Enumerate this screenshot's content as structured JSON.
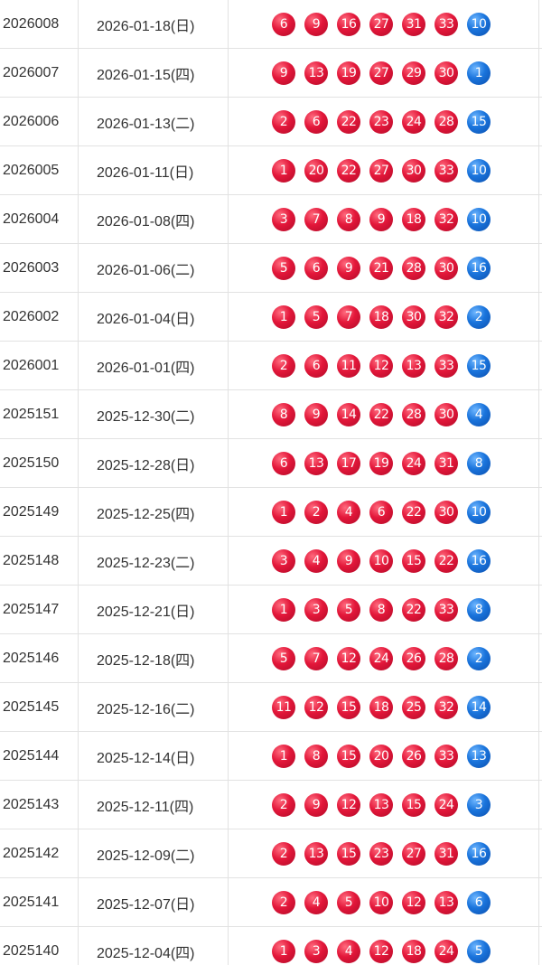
{
  "draws": [
    {
      "issue": "2026008",
      "date": "2026-01-18(日)",
      "red": [
        "6",
        "9",
        "16",
        "27",
        "31",
        "33"
      ],
      "blue": "10"
    },
    {
      "issue": "2026007",
      "date": "2026-01-15(四)",
      "red": [
        "9",
        "13",
        "19",
        "27",
        "29",
        "30"
      ],
      "blue": "1"
    },
    {
      "issue": "2026006",
      "date": "2026-01-13(二)",
      "red": [
        "2",
        "6",
        "22",
        "23",
        "24",
        "28"
      ],
      "blue": "15"
    },
    {
      "issue": "2026005",
      "date": "2026-01-11(日)",
      "red": [
        "1",
        "20",
        "22",
        "27",
        "30",
        "33"
      ],
      "blue": "10"
    },
    {
      "issue": "2026004",
      "date": "2026-01-08(四)",
      "red": [
        "3",
        "7",
        "8",
        "9",
        "18",
        "32"
      ],
      "blue": "10"
    },
    {
      "issue": "2026003",
      "date": "2026-01-06(二)",
      "red": [
        "5",
        "6",
        "9",
        "21",
        "28",
        "30"
      ],
      "blue": "16"
    },
    {
      "issue": "2026002",
      "date": "2026-01-04(日)",
      "red": [
        "1",
        "5",
        "7",
        "18",
        "30",
        "32"
      ],
      "blue": "2"
    },
    {
      "issue": "2026001",
      "date": "2026-01-01(四)",
      "red": [
        "2",
        "6",
        "11",
        "12",
        "13",
        "33"
      ],
      "blue": "15"
    },
    {
      "issue": "2025151",
      "date": "2025-12-30(二)",
      "red": [
        "8",
        "9",
        "14",
        "22",
        "28",
        "30"
      ],
      "blue": "4"
    },
    {
      "issue": "2025150",
      "date": "2025-12-28(日)",
      "red": [
        "6",
        "13",
        "17",
        "19",
        "24",
        "31"
      ],
      "blue": "8"
    },
    {
      "issue": "2025149",
      "date": "2025-12-25(四)",
      "red": [
        "1",
        "2",
        "4",
        "6",
        "22",
        "30"
      ],
      "blue": "10"
    },
    {
      "issue": "2025148",
      "date": "2025-12-23(二)",
      "red": [
        "3",
        "4",
        "9",
        "10",
        "15",
        "22"
      ],
      "blue": "16"
    },
    {
      "issue": "2025147",
      "date": "2025-12-21(日)",
      "red": [
        "1",
        "3",
        "5",
        "8",
        "22",
        "33"
      ],
      "blue": "8"
    },
    {
      "issue": "2025146",
      "date": "2025-12-18(四)",
      "red": [
        "5",
        "7",
        "12",
        "24",
        "26",
        "28"
      ],
      "blue": "2"
    },
    {
      "issue": "2025145",
      "date": "2025-12-16(二)",
      "red": [
        "11",
        "12",
        "15",
        "18",
        "25",
        "32"
      ],
      "blue": "14"
    },
    {
      "issue": "2025144",
      "date": "2025-12-14(日)",
      "red": [
        "1",
        "8",
        "15",
        "20",
        "26",
        "33"
      ],
      "blue": "13"
    },
    {
      "issue": "2025143",
      "date": "2025-12-11(四)",
      "red": [
        "2",
        "9",
        "12",
        "13",
        "15",
        "24"
      ],
      "blue": "3"
    },
    {
      "issue": "2025142",
      "date": "2025-12-09(二)",
      "red": [
        "2",
        "13",
        "15",
        "23",
        "27",
        "31"
      ],
      "blue": "16"
    },
    {
      "issue": "2025141",
      "date": "2025-12-07(日)",
      "red": [
        "2",
        "4",
        "5",
        "10",
        "12",
        "13"
      ],
      "blue": "6"
    },
    {
      "issue": "2025140",
      "date": "2025-12-04(四)",
      "red": [
        "1",
        "3",
        "4",
        "12",
        "18",
        "24"
      ],
      "blue": "5"
    }
  ],
  "colors": {
    "red_ball": "#e3173a",
    "blue_ball": "#1a74dc",
    "grid_line": "#e2e2e2",
    "text": "#333333"
  }
}
